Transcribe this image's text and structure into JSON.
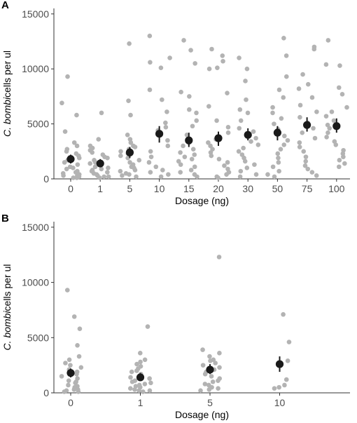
{
  "colors": {
    "point": "#b3b3b3",
    "mean": "#1a1a1a",
    "axis": "#333333"
  },
  "chart_data": [
    {
      "type": "scatter",
      "panel_label": "A",
      "xlabel": "Dosage (ng)",
      "ylabel_italic": "C. bombi",
      "ylabel_rest": "cells per ul",
      "categories": [
        "0",
        "1",
        "5",
        "10",
        "15",
        "20",
        "30",
        "50",
        "75",
        "100"
      ],
      "ylim": [
        0,
        15500
      ],
      "yticks": [
        0,
        5000,
        10000,
        15000
      ],
      "points": [
        [
          9300,
          6900,
          5800,
          4300,
          3300,
          3000,
          2700,
          2500,
          2300,
          2100,
          1900,
          1700,
          1500,
          1300,
          1100,
          1000,
          900,
          700,
          600,
          500,
          400,
          300,
          300,
          200,
          100,
          100
        ],
        [
          6000,
          3600,
          3000,
          2800,
          2600,
          2400,
          2200,
          2000,
          1900,
          1700,
          1500,
          1400,
          1300,
          1100,
          1000,
          900,
          800,
          700,
          600,
          500,
          400,
          300,
          200,
          200,
          100
        ],
        [
          12300,
          7100,
          5800,
          4000,
          3600,
          3300,
          3000,
          2900,
          2700,
          2500,
          2300,
          2100,
          1900,
          1700,
          1500,
          1300,
          1100,
          1000,
          800,
          700,
          500,
          400,
          300,
          200
        ],
        [
          13000,
          11000,
          10600,
          10100,
          8100,
          7200,
          6100,
          5100,
          4700,
          4400,
          3500,
          3000,
          2500,
          2000,
          1500,
          1100,
          800,
          600,
          400,
          200
        ],
        [
          12600,
          11700,
          10500,
          7900,
          7500,
          6300,
          6000,
          5300,
          4800,
          4000,
          3600,
          3300,
          3000,
          2700,
          2400,
          2200,
          2000,
          1800,
          1600,
          1300,
          1100,
          800,
          600,
          400,
          200
        ],
        [
          11800,
          11200,
          10700,
          10100,
          10000,
          7800,
          6600,
          5300,
          4700,
          4200,
          3600,
          3300,
          3000,
          2700,
          2400,
          2100,
          1800,
          1500,
          1200,
          900,
          600,
          400,
          200,
          100
        ],
        [
          11000,
          10000,
          8900,
          7200,
          6300,
          6000,
          5300,
          4600,
          4300,
          4000,
          3700,
          3400,
          3100,
          2800,
          2500,
          2200,
          1900,
          1600,
          1300,
          1000,
          700,
          400,
          200
        ],
        [
          12800,
          11200,
          9300,
          8100,
          7400,
          6500,
          6000,
          5500,
          5000,
          4500,
          4200,
          3900,
          3500,
          3100,
          2700,
          2300,
          1900,
          1500,
          1100,
          700,
          400,
          200
        ],
        [
          12000,
          11800,
          9500,
          8600,
          8200,
          7400,
          6700,
          6100,
          5600,
          5100,
          4600,
          4200,
          3700,
          3300,
          2900,
          2500,
          2000,
          1600,
          1200,
          900,
          600,
          300
        ],
        [
          12600,
          10400,
          10300,
          8300,
          7700,
          6500,
          6100,
          5700,
          5300,
          4900,
          4600,
          4200,
          3800,
          3400,
          3100,
          2600,
          2300,
          2000,
          1700,
          1400,
          1100
        ]
      ],
      "means": [
        1800,
        1400,
        2400,
        4100,
        3500,
        3700,
        4000,
        4200,
        4900,
        4800
      ],
      "error_bars": [
        [
          1400,
          2200
        ],
        [
          1100,
          1800
        ],
        [
          1900,
          2900
        ],
        [
          3300,
          4800
        ],
        [
          2900,
          4200
        ],
        [
          3000,
          4300
        ],
        [
          3500,
          4600
        ],
        [
          3500,
          4800
        ],
        [
          4300,
          5600
        ],
        [
          4200,
          5500
        ]
      ]
    },
    {
      "type": "scatter",
      "panel_label": "B",
      "xlabel": "Dosage (ng)",
      "ylabel_italic": "C. bombi",
      "ylabel_rest": "cells per ul",
      "categories": [
        "0",
        "1",
        "5",
        "10"
      ],
      "ylim": [
        0,
        15500
      ],
      "yticks": [
        0,
        5000,
        10000,
        15000
      ],
      "points": [
        [
          9300,
          6900,
          5800,
          4300,
          3300,
          3000,
          2700,
          2500,
          2300,
          2100,
          1900,
          1700,
          1500,
          1300,
          1100,
          1000,
          900,
          700,
          600,
          500,
          400,
          300,
          300,
          200,
          100,
          100
        ],
        [
          6000,
          3600,
          3000,
          2800,
          2600,
          2400,
          2200,
          2000,
          1900,
          1700,
          1500,
          1400,
          1300,
          1100,
          1000,
          900,
          800,
          700,
          600,
          500,
          400,
          300,
          200,
          200,
          100
        ],
        [
          12300,
          3900,
          3600,
          3300,
          3000,
          2900,
          2700,
          2500,
          2300,
          2100,
          1900,
          1700,
          1500,
          1300,
          1100,
          1000,
          800,
          700,
          500,
          400,
          300,
          200
        ],
        [
          7100,
          4600,
          2900,
          2600,
          1200,
          700,
          500,
          400
        ]
      ],
      "means": [
        1800,
        1400,
        2100,
        2600
      ],
      "error_bars": [
        [
          1400,
          2200
        ],
        [
          1100,
          1800
        ],
        [
          1700,
          2600
        ],
        [
          1900,
          3300
        ]
      ]
    }
  ]
}
